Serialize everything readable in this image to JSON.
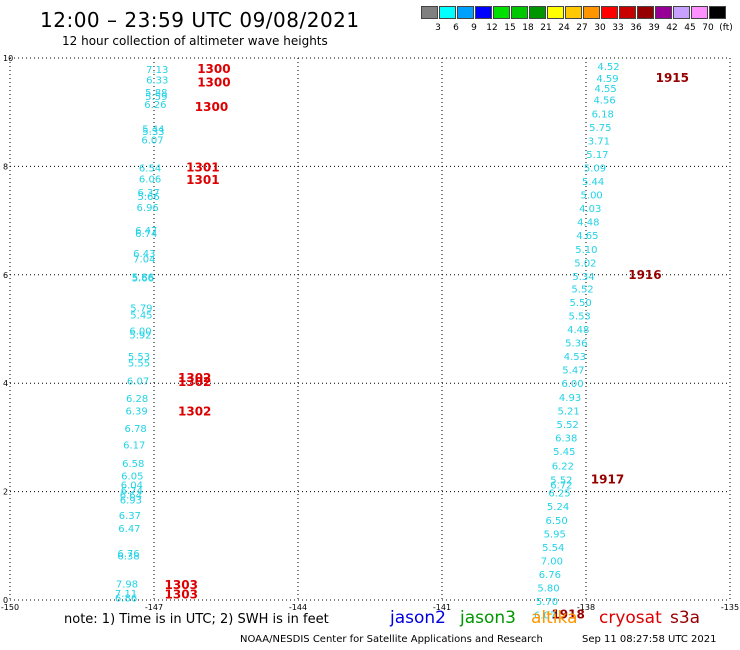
{
  "header": {
    "title": "12:00 – 23:59 UTC 09/08/2021",
    "subtitle": "12 hour collection of altimeter wave heights"
  },
  "colorbar": {
    "colors": [
      "#808080",
      "#00ffff",
      "#00a0ff",
      "#0000ff",
      "#00e000",
      "#00c800",
      "#009600",
      "#ffff00",
      "#ffc800",
      "#ff9600",
      "#ff0000",
      "#c80000",
      "#960000",
      "#960096",
      "#c8a0ff",
      "#ff90ff",
      "#000000"
    ],
    "labels": [
      "3",
      "6",
      "9",
      "12",
      "15",
      "18",
      "21",
      "24",
      "27",
      "30",
      "33",
      "36",
      "39",
      "42",
      "45",
      "70",
      "(ft)"
    ]
  },
  "footer": {
    "note": "note:  1) Time is in UTC;  2) SWH is in feet",
    "missions": [
      {
        "name": "jason2",
        "color": "#0000dd"
      },
      {
        "name": "jason3",
        "color": "#009600"
      },
      {
        "name": "altika",
        "color": "#ff9600"
      },
      {
        "name": "cryosat",
        "color": "#dd0000"
      },
      {
        "name": "s3a",
        "color": "#960000"
      }
    ],
    "credit": "NOAA/NESDIS Center for Satellite Applications and Research",
    "timestamp": "Sep 11 08:27:58 UTC 2021"
  },
  "chart_data": {
    "type": "scatter",
    "title": "12:00 – 23:59 UTC 09/08/2021",
    "subtitle": "12 hour collection of altimeter wave heights",
    "xlim": [
      -150,
      -135
    ],
    "ylim": [
      0,
      10
    ],
    "x_ticks": [
      "-150",
      "-147",
      "-144",
      "-141",
      "-138",
      "-135"
    ],
    "y_ticks": [
      "0",
      "2",
      "4",
      "6",
      "8",
      "10"
    ],
    "grid": true,
    "point_color": "#22d3e6",
    "series": [
      {
        "name": "cryosat",
        "label_color": "#dd0000",
        "points": [
          {
            "x": -146.7,
            "y": 9.8,
            "label": "7.13"
          },
          {
            "x": -146.7,
            "y": 9.6,
            "label": "6.33"
          },
          {
            "x": -146.72,
            "y": 9.37,
            "label": "5.88"
          },
          {
            "x": -146.72,
            "y": 9.3,
            "label": "5.59"
          },
          {
            "x": -146.74,
            "y": 9.15,
            "label": "6.26"
          },
          {
            "x": -146.78,
            "y": 8.7,
            "label": "5.44"
          },
          {
            "x": -146.78,
            "y": 8.65,
            "label": "5.33"
          },
          {
            "x": -146.8,
            "y": 8.5,
            "label": "6.07"
          },
          {
            "x": -146.85,
            "y": 7.98,
            "label": "6.54"
          },
          {
            "x": -146.85,
            "y": 7.78,
            "label": "6.06"
          },
          {
            "x": -146.88,
            "y": 7.53,
            "label": "6.37"
          },
          {
            "x": -146.88,
            "y": 7.45,
            "label": "5.66"
          },
          {
            "x": -146.9,
            "y": 7.25,
            "label": "6.96"
          },
          {
            "x": -146.93,
            "y": 6.83,
            "label": "6.47"
          },
          {
            "x": -146.93,
            "y": 6.77,
            "label": "6.74"
          },
          {
            "x": -146.97,
            "y": 6.4,
            "label": "6.43"
          },
          {
            "x": -146.97,
            "y": 6.3,
            "label": "7.04"
          },
          {
            "x": -147.0,
            "y": 5.97,
            "label": "5.86"
          },
          {
            "x": -147.0,
            "y": 5.95,
            "label": "5.66"
          },
          {
            "x": -147.03,
            "y": 5.4,
            "label": "5.79"
          },
          {
            "x": -147.03,
            "y": 5.27,
            "label": "5.45"
          },
          {
            "x": -147.05,
            "y": 4.97,
            "label": "6.00"
          },
          {
            "x": -147.05,
            "y": 4.9,
            "label": "5.92"
          },
          {
            "x": -147.08,
            "y": 4.5,
            "label": "5.53"
          },
          {
            "x": -147.08,
            "y": 4.38,
            "label": "5.55"
          },
          {
            "x": -147.1,
            "y": 4.05,
            "label": "6.07"
          },
          {
            "x": -147.12,
            "y": 3.73,
            "label": "6.28"
          },
          {
            "x": -147.13,
            "y": 3.5,
            "label": "6.39"
          },
          {
            "x": -147.15,
            "y": 3.17,
            "label": "6.78"
          },
          {
            "x": -147.18,
            "y": 2.87,
            "label": "6.17"
          },
          {
            "x": -147.2,
            "y": 2.53,
            "label": "6.58"
          },
          {
            "x": -147.22,
            "y": 2.3,
            "label": "6.05"
          },
          {
            "x": -147.23,
            "y": 2.13,
            "label": "6.04"
          },
          {
            "x": -147.23,
            "y": 2.03,
            "label": "6.74"
          },
          {
            "x": -147.25,
            "y": 1.95,
            "label": "6.64"
          },
          {
            "x": -147.25,
            "y": 1.85,
            "label": "6.93"
          },
          {
            "x": -147.27,
            "y": 1.57,
            "label": "6.37"
          },
          {
            "x": -147.28,
            "y": 1.33,
            "label": "6.47"
          },
          {
            "x": -147.3,
            "y": 0.87,
            "label": "6.76"
          },
          {
            "x": -147.3,
            "y": 0.82,
            "label": "6.38"
          },
          {
            "x": -147.33,
            "y": 0.3,
            "label": "7.98"
          },
          {
            "x": -147.35,
            "y": 0.13,
            "label": "7.11"
          },
          {
            "x": -147.35,
            "y": 0.05,
            "label": "6.86"
          }
        ],
        "pass_labels": [
          {
            "x": -146.1,
            "y": 9.8,
            "label": "1300"
          },
          {
            "x": -146.1,
            "y": 9.55,
            "label": "1300"
          },
          {
            "x": -146.15,
            "y": 9.1,
            "label": "1300"
          },
          {
            "x": -146.33,
            "y": 7.98,
            "label": "1301"
          },
          {
            "x": -146.33,
            "y": 7.75,
            "label": "1301"
          },
          {
            "x": -146.5,
            "y": 4.1,
            "label": "1302"
          },
          {
            "x": -146.5,
            "y": 4.02,
            "label": "1302"
          },
          {
            "x": -146.5,
            "y": 3.48,
            "label": "1302"
          },
          {
            "x": -146.78,
            "y": 0.28,
            "label": "1303"
          },
          {
            "x": -146.78,
            "y": 0.1,
            "label": "1303"
          }
        ]
      },
      {
        "name": "s3a",
        "label_color": "#960000",
        "points": [
          {
            "x": -137.3,
            "y": 9.85,
            "label": "4.52"
          },
          {
            "x": -137.32,
            "y": 9.63,
            "label": "4.59"
          },
          {
            "x": -137.36,
            "y": 9.45,
            "label": "4.55"
          },
          {
            "x": -137.38,
            "y": 9.23,
            "label": "4.56"
          },
          {
            "x": -137.42,
            "y": 8.98,
            "label": "6.18"
          },
          {
            "x": -137.47,
            "y": 8.73,
            "label": "5.75"
          },
          {
            "x": -137.5,
            "y": 8.48,
            "label": "3.71"
          },
          {
            "x": -137.53,
            "y": 8.23,
            "label": "5.17"
          },
          {
            "x": -137.58,
            "y": 7.98,
            "label": "5.09"
          },
          {
            "x": -137.62,
            "y": 7.73,
            "label": "5.44"
          },
          {
            "x": -137.65,
            "y": 7.48,
            "label": "5.00"
          },
          {
            "x": -137.68,
            "y": 7.23,
            "label": "4.03"
          },
          {
            "x": -137.72,
            "y": 6.98,
            "label": "4.48"
          },
          {
            "x": -137.74,
            "y": 6.73,
            "label": "4.65"
          },
          {
            "x": -137.76,
            "y": 6.48,
            "label": "5.10"
          },
          {
            "x": -137.78,
            "y": 6.23,
            "label": "5.02"
          },
          {
            "x": -137.82,
            "y": 5.98,
            "label": "5.34"
          },
          {
            "x": -137.84,
            "y": 5.75,
            "label": "5.52"
          },
          {
            "x": -137.88,
            "y": 5.5,
            "label": "5.50"
          },
          {
            "x": -137.9,
            "y": 5.25,
            "label": "5.53"
          },
          {
            "x": -137.93,
            "y": 5.0,
            "label": "4.48"
          },
          {
            "x": -137.97,
            "y": 4.75,
            "label": "5.36"
          },
          {
            "x": -138.0,
            "y": 4.5,
            "label": "4.53"
          },
          {
            "x": -138.03,
            "y": 4.25,
            "label": "5.47"
          },
          {
            "x": -138.05,
            "y": 4.0,
            "label": "6.00"
          },
          {
            "x": -138.1,
            "y": 3.75,
            "label": "4.93"
          },
          {
            "x": -138.13,
            "y": 3.5,
            "label": "5.21"
          },
          {
            "x": -138.15,
            "y": 3.25,
            "label": "5.52"
          },
          {
            "x": -138.18,
            "y": 3.0,
            "label": "6.38"
          },
          {
            "x": -138.22,
            "y": 2.75,
            "label": "5.45"
          },
          {
            "x": -138.25,
            "y": 2.48,
            "label": "6.22"
          },
          {
            "x": -138.28,
            "y": 2.22,
            "label": "5.52"
          },
          {
            "x": -138.28,
            "y": 2.13,
            "label": "6.72"
          },
          {
            "x": -138.32,
            "y": 1.98,
            "label": "6.25"
          },
          {
            "x": -138.35,
            "y": 1.73,
            "label": "5.24"
          },
          {
            "x": -138.38,
            "y": 1.48,
            "label": "6.50"
          },
          {
            "x": -138.42,
            "y": 1.23,
            "label": "5.95"
          },
          {
            "x": -138.45,
            "y": 0.98,
            "label": "5.54"
          },
          {
            "x": -138.48,
            "y": 0.73,
            "label": "7.00"
          },
          {
            "x": -138.52,
            "y": 0.48,
            "label": "6.76"
          },
          {
            "x": -138.55,
            "y": 0.23,
            "label": "5.80"
          },
          {
            "x": -138.58,
            "y": -0.02,
            "label": "5.70"
          },
          {
            "x": -138.62,
            "y": -0.27,
            "label": "6.07"
          }
        ],
        "pass_labels": [
          {
            "x": -136.55,
            "y": 9.63,
            "label": "1915"
          },
          {
            "x": -137.12,
            "y": 6.0,
            "label": "1916"
          },
          {
            "x": -137.9,
            "y": 2.22,
            "label": "1917"
          },
          {
            "x": -138.72,
            "y": -0.27,
            "label": "1918"
          }
        ]
      }
    ]
  }
}
